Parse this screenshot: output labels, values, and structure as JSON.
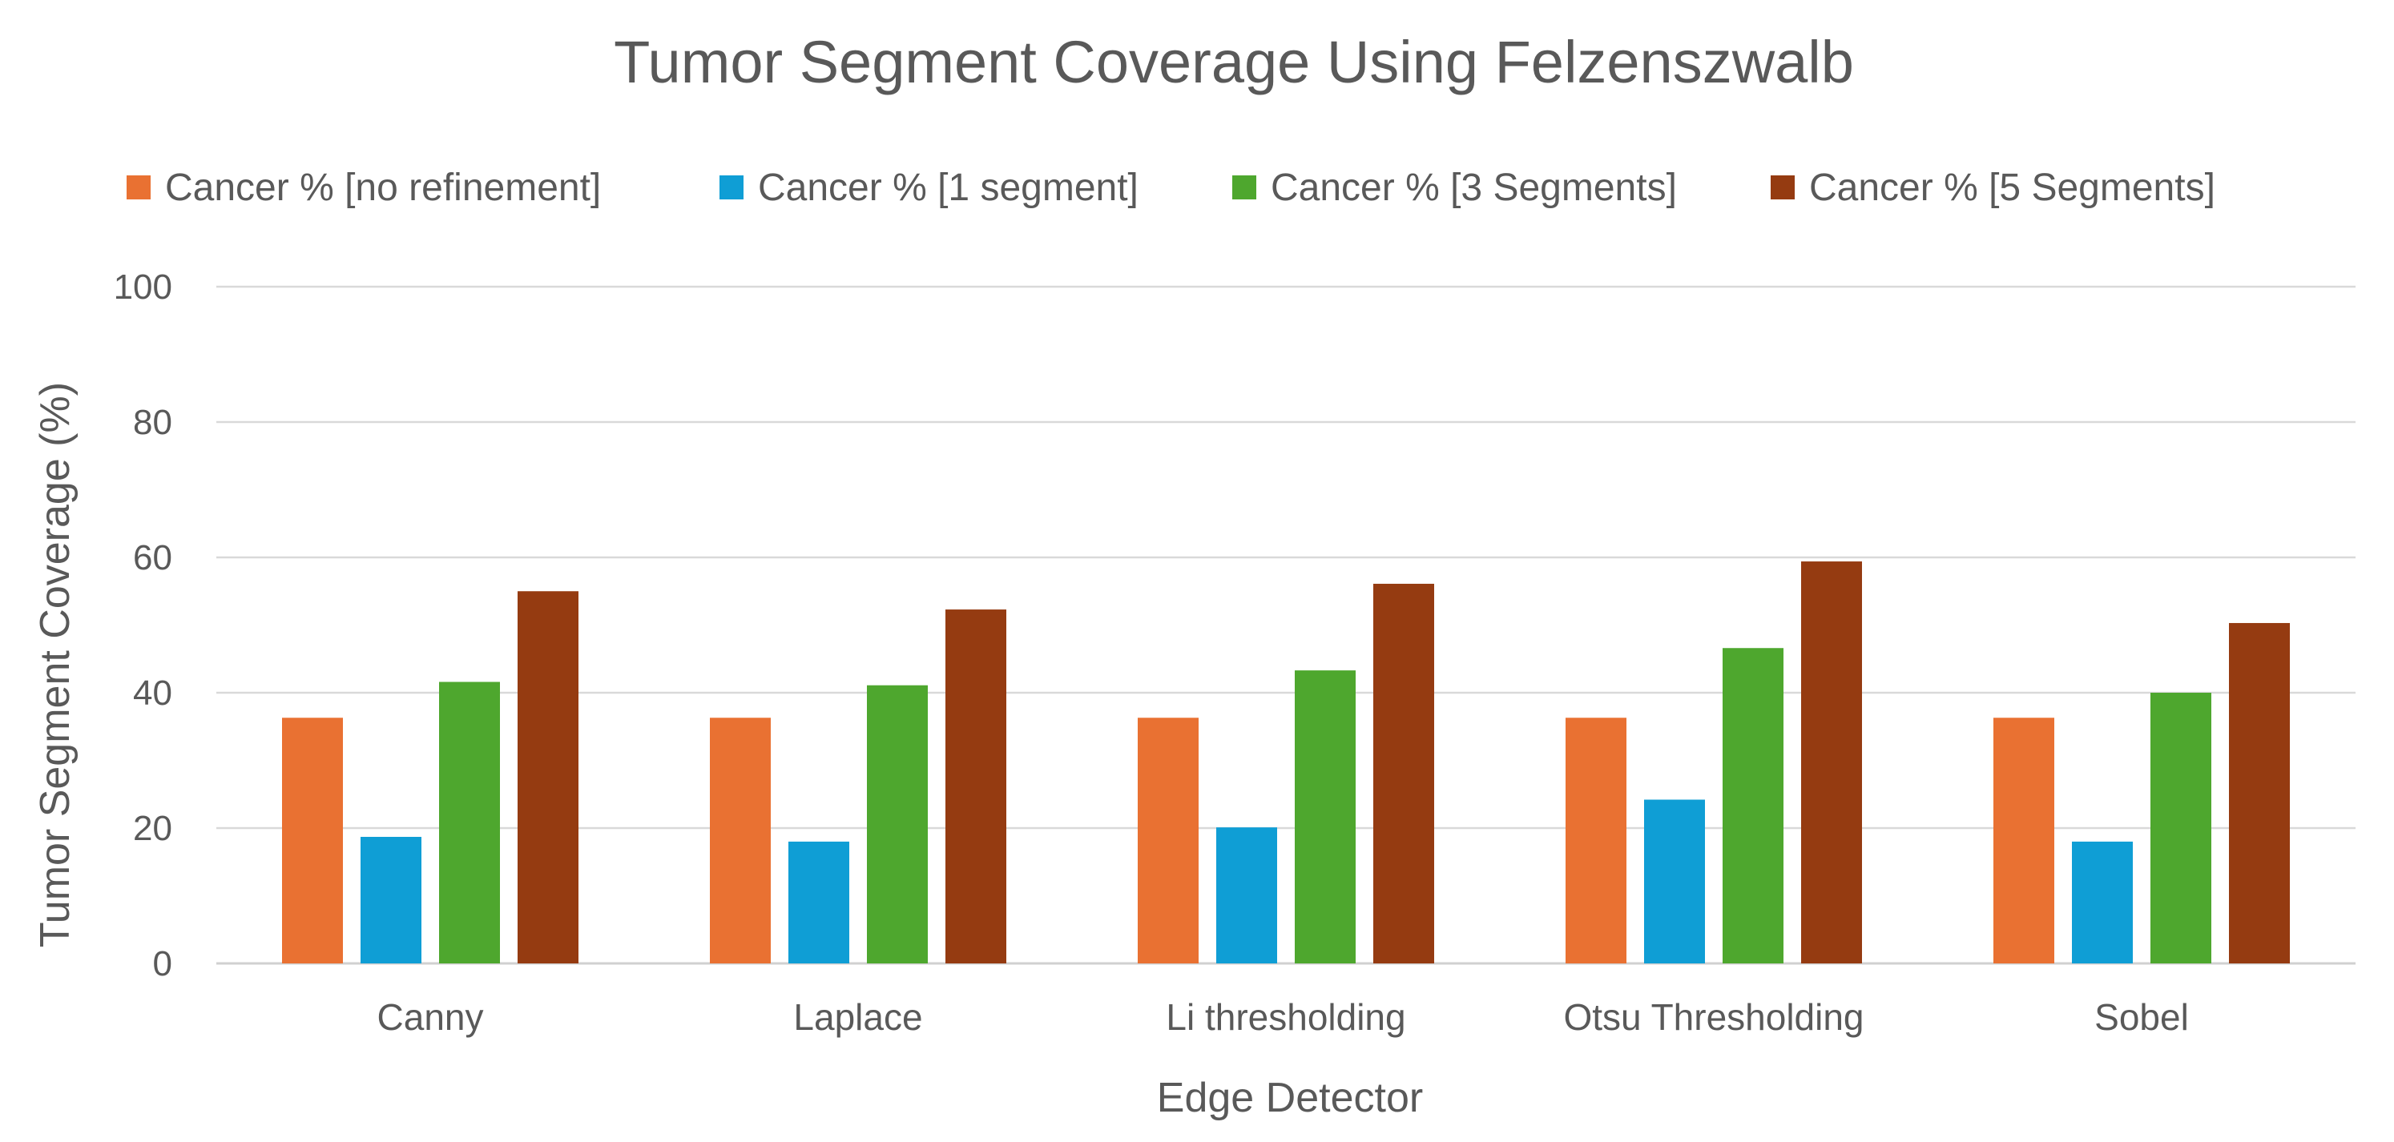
{
  "chart_data": {
    "type": "bar",
    "title": "Tumor Segment Coverage Using Felzenszwalb",
    "xlabel": "Edge Detector",
    "ylabel": "Tumor Segment Coverage (%)",
    "ylim": [
      0,
      100
    ],
    "yticks": [
      0,
      20,
      40,
      60,
      80,
      100
    ],
    "grid": true,
    "legend_position": "top",
    "categories": [
      "Canny",
      "Laplace",
      "Li thresholding",
      "Otsu Thresholding",
      "Sobel"
    ],
    "series": [
      {
        "name": "Cancer % [no refinement]",
        "color": "#E97132",
        "values": [
          36.3,
          36.3,
          36.3,
          36.3,
          36.3
        ]
      },
      {
        "name": "Cancer % [1 segment]",
        "color": "#0F9ED5",
        "values": [
          18.7,
          18.0,
          20.1,
          24.2,
          18.0
        ]
      },
      {
        "name": "Cancer % [3 Segments]",
        "color": "#4EA72E",
        "values": [
          41.6,
          41.1,
          43.3,
          46.6,
          40.0
        ]
      },
      {
        "name": "Cancer % [5 Segments]",
        "color": "#953B11",
        "values": [
          55.0,
          52.3,
          56.1,
          59.4,
          50.3
        ]
      }
    ]
  }
}
